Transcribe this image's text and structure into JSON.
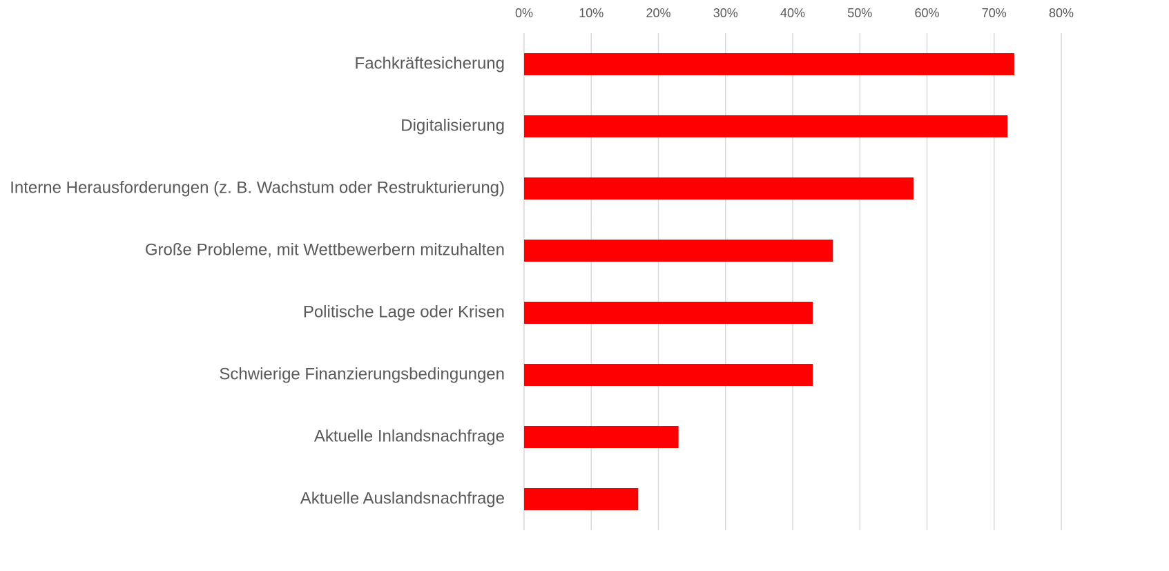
{
  "chart_data": {
    "type": "bar",
    "orientation": "horizontal",
    "categories": [
      "Fachkräftesicherung",
      "Digitalisierung",
      "Interne Herausforderungen (z. B. Wachstum oder Restrukturierung)",
      "Große Probleme, mit Wettbewerbern mitzuhalten",
      "Politische Lage oder Krisen",
      "Schwierige Finanzierungsbedingungen",
      "Aktuelle Inlandsnachfrage",
      "Aktuelle Auslandsnachfrage"
    ],
    "values": [
      73,
      72,
      58,
      46,
      43,
      43,
      23,
      17
    ],
    "color": "#ff0000",
    "xlim": [
      0,
      80
    ],
    "xticks": [
      {
        "value": 0,
        "label": "0%"
      },
      {
        "value": 10,
        "label": "10%"
      },
      {
        "value": 20,
        "label": "20%"
      },
      {
        "value": 30,
        "label": "30%"
      },
      {
        "value": 40,
        "label": "40%"
      },
      {
        "value": 50,
        "label": "50%"
      },
      {
        "value": 60,
        "label": "60%"
      },
      {
        "value": 70,
        "label": "70%"
      },
      {
        "value": 80,
        "label": "80%"
      }
    ],
    "grid": true
  }
}
